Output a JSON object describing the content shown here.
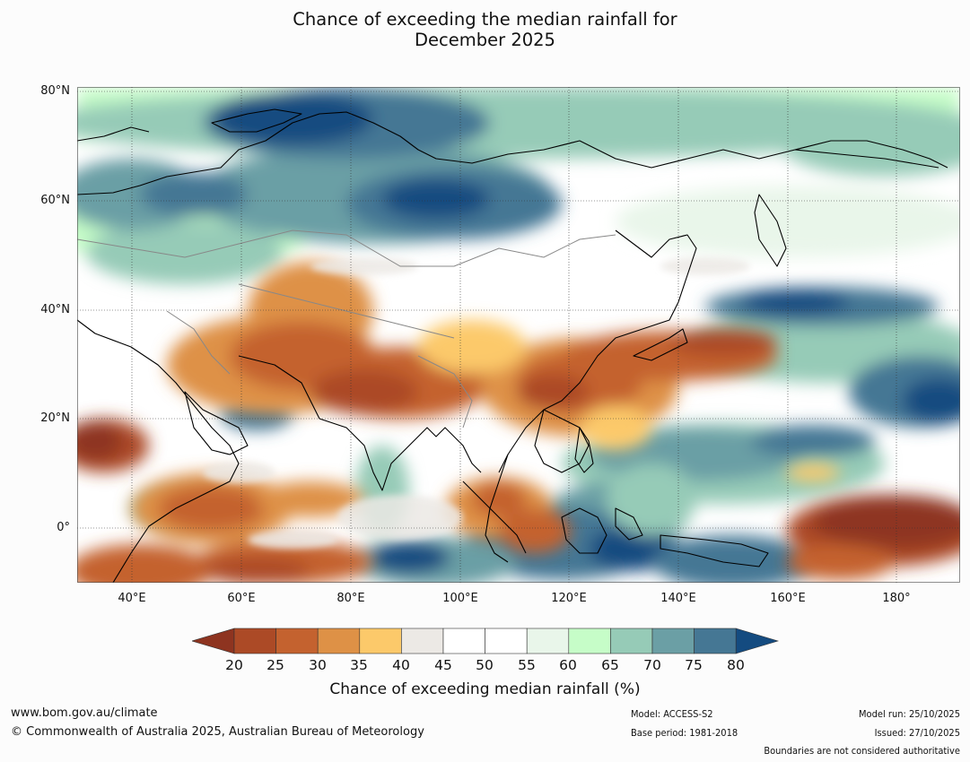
{
  "title": {
    "line1": "Chance of exceeding the median rainfall for",
    "line2": "December 2025"
  },
  "map": {
    "lat_labels": [
      "80°N",
      "60°N",
      "40°N",
      "20°N",
      "0°"
    ],
    "lon_labels": [
      "40°E",
      "60°E",
      "80°E",
      "100°E",
      "120°E",
      "140°E",
      "160°E",
      "180°"
    ],
    "extent": {
      "lon_min": 30,
      "lon_max": 191,
      "lat_min": -10,
      "lat_max": 81
    }
  },
  "colorbar": {
    "ticks": [
      "20",
      "25",
      "30",
      "35",
      "40",
      "45",
      "50",
      "55",
      "60",
      "65",
      "70",
      "75",
      "80"
    ],
    "colors": {
      "below20": "#8e3420",
      "b20_25": "#ac4a26",
      "b25_30": "#c4622f",
      "b30_35": "#de9146",
      "b35_40": "#fcc96a",
      "b40_45": "#ece9e5",
      "b45_50": "#ffffff",
      "b50_55": "#ffffff",
      "b55_60": "#e9f6ea",
      "b60_65": "#c6fdc8",
      "b65_70": "#96cbb7",
      "b70_75": "#6b9fa5",
      "b75_80": "#457794",
      "above80": "#144b80"
    },
    "label": "Chance of exceeding median rainfall (%)"
  },
  "footer": {
    "url": "www.bom.gov.au/climate",
    "copyright": "© Commonwealth of Australia 2025, Australian Bureau of Meteorology",
    "model": "Model: ACCESS-S2",
    "base_period": "Base period: 1981-2018",
    "model_run": "Model run: 25/10/2025",
    "issued": "Issued: 27/10/2025",
    "disclaimer": "Boundaries are not considered authoritative"
  }
}
